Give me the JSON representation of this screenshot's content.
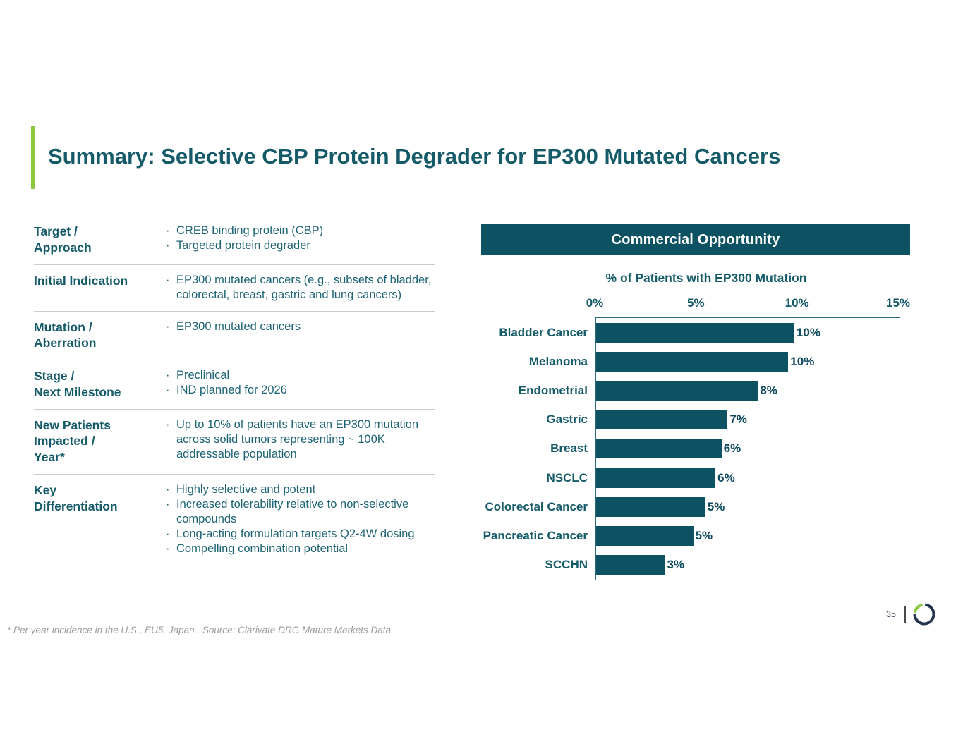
{
  "slide": {
    "title": "Summary: Selective CBP Protein Degrader for EP300 Mutated Cancers",
    "footnote": "* Per year incidence in the U.S., EU5, Japan . Source: Clarivate DRG Mature Markets Data.",
    "page_number": "35",
    "colors": {
      "teal": "#0d5263",
      "text_teal": "#145a68",
      "bullet_teal": "#1c6374",
      "accent_green": "#8dc63f",
      "logo_navy": "#24354f"
    }
  },
  "table": {
    "rows": [
      {
        "label": "Target /\nApproach",
        "bullets": [
          "CREB binding protein (CBP)",
          "Targeted protein degrader"
        ]
      },
      {
        "label": "Initial Indication",
        "bullets": [
          "EP300 mutated cancers (e.g., subsets of bladder, colorectal, breast, gastric and lung cancers)"
        ]
      },
      {
        "label": "Mutation /\nAberration",
        "bullets": [
          "EP300 mutated cancers"
        ]
      },
      {
        "label": "Stage /\nNext Milestone",
        "bullets": [
          "Preclinical",
          "IND planned for 2026"
        ]
      },
      {
        "label": "New Patients\nImpacted /\nYear*",
        "bullets": [
          "Up to 10% of patients have an EP300 mutation across solid tumors representing ~ 100K addressable population"
        ]
      },
      {
        "label": "Key\nDifferentiation",
        "bullets": [
          "Highly selective and potent",
          "Increased tolerability relative to non-selective compounds",
          "Long-acting formulation targets Q2-4W dosing",
          "Compelling combination potential"
        ]
      }
    ]
  },
  "chart": {
    "header": "Commercial Opportunity"
  },
  "chart_data": {
    "type": "bar",
    "orientation": "horizontal",
    "title": "% of Patients with EP300 Mutation",
    "categories": [
      "Bladder Cancer",
      "Melanoma",
      "Endometrial",
      "Gastric",
      "Breast",
      "NSCLC",
      "Colorectal Cancer",
      "Pancreatic Cancer",
      "SCCHN"
    ],
    "values": [
      10,
      10,
      8,
      7,
      6,
      6,
      5,
      5,
      3
    ],
    "value_labels": [
      "10%",
      "10%",
      "8%",
      "7%",
      "6%",
      "6%",
      "5%",
      "5%",
      "3%"
    ],
    "bar_lengths_pct_estimated": [
      9.8,
      9.5,
      8.0,
      6.5,
      6.2,
      5.9,
      5.4,
      4.8,
      3.4
    ],
    "xlim": [
      0,
      15
    ],
    "x_ticks": [
      {
        "value": 0,
        "label": "0%"
      },
      {
        "value": 5,
        "label": "5%"
      },
      {
        "value": 10,
        "label": "10%"
      },
      {
        "value": 15,
        "label": "15%"
      }
    ],
    "xlabel": "",
    "ylabel": "",
    "bar_color": "#0d5263",
    "grid": false,
    "legend": false
  }
}
